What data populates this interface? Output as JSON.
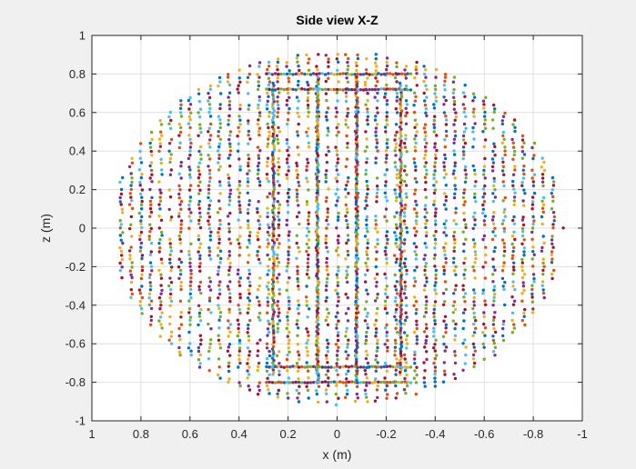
{
  "chart_data": {
    "type": "scatter",
    "title": "Side view X-Z",
    "xlabel": "x (m)",
    "ylabel": "z (m)",
    "xlim": [
      1,
      -1
    ],
    "ylim": [
      -1,
      1
    ],
    "x_reversed": true,
    "grid": true,
    "legend": "none",
    "x_ticks": [
      1,
      0.8,
      0.6,
      0.4,
      0.2,
      0,
      -0.2,
      -0.4,
      -0.6,
      -0.8,
      -1
    ],
    "x_tick_labels": [
      "1",
      "0.8",
      "0.6",
      "0.4",
      "0.2",
      "0",
      "-0.2",
      "-0.4",
      "-0.6",
      "-0.8",
      "-1"
    ],
    "y_ticks": [
      1,
      0.8,
      0.6,
      0.4,
      0.2,
      0,
      -0.2,
      -0.4,
      -0.6,
      -0.8,
      -1
    ],
    "y_tick_labels": [
      "1",
      "0.8",
      "0.6",
      "0.4",
      "0.2",
      "0",
      "-0.2",
      "-0.4",
      "-0.6",
      "-0.8",
      "-1"
    ],
    "colors": [
      "#0072BD",
      "#D95319",
      "#EDB120",
      "#7E2F8E",
      "#77AC30",
      "#4DBEEE",
      "#A2142F"
    ],
    "point_cloud": {
      "shape": "disc",
      "radius": 0.92,
      "x_step": 0.04,
      "z_step": 0.02,
      "dense_columns_x": [
        0.26,
        0.08,
        -0.08,
        -0.26
      ],
      "dense_rows_z": [
        0.8,
        0.72,
        -0.72,
        -0.8
      ]
    }
  },
  "colors": {
    "figure_bg": "#f0f0f0",
    "axes_bg": "#ffffff",
    "grid": "#e0e0e0",
    "axis": "#262626"
  }
}
